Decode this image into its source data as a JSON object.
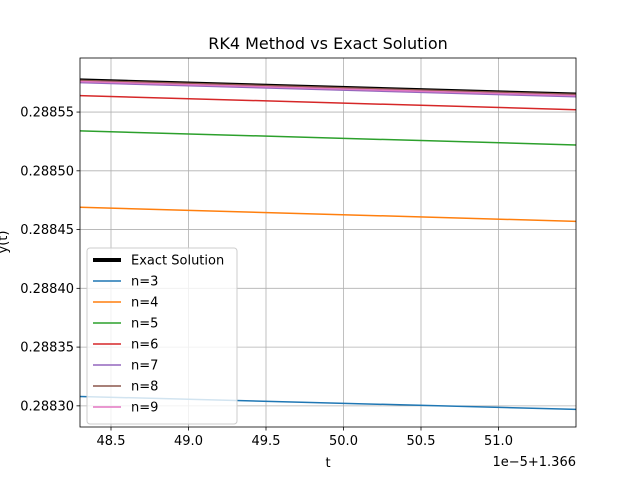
{
  "chart_data": {
    "type": "line",
    "title": "RK4 Method vs Exact Solution",
    "xlabel": "t",
    "ylabel": "y(t)",
    "x_offset_label": "1e−5+1.366",
    "xlim": [
      48.3,
      51.5
    ],
    "ylim": [
      0.288282,
      0.288596
    ],
    "xticks": [
      48.5,
      49.0,
      49.5,
      50.0,
      50.5,
      51.0
    ],
    "xtick_labels": [
      "48.5",
      "49.0",
      "49.5",
      "50.0",
      "50.5",
      "51.0"
    ],
    "yticks": [
      0.2883,
      0.28835,
      0.2884,
      0.28845,
      0.2885,
      0.28855
    ],
    "ytick_labels": [
      "0.28830",
      "0.28835",
      "0.28840",
      "0.28845",
      "0.28850",
      "0.28855"
    ],
    "grid": true,
    "legend_position": "lower-left",
    "x": [
      48.3,
      51.5
    ],
    "series": [
      {
        "name": "Exact Solution",
        "values": [
          0.288578,
          0.288566
        ],
        "color": "#000000",
        "width": 1.5,
        "legend_width": 4
      },
      {
        "name": "n=3",
        "values": [
          0.288308,
          0.288297
        ],
        "color": "#1f77b4",
        "width": 1.5
      },
      {
        "name": "n=4",
        "values": [
          0.288469,
          0.288457
        ],
        "color": "#ff7f0e",
        "width": 1.5
      },
      {
        "name": "n=5",
        "values": [
          0.288534,
          0.288522
        ],
        "color": "#2ca02c",
        "width": 1.5
      },
      {
        "name": "n=6",
        "values": [
          0.288564,
          0.288552
        ],
        "color": "#d62728",
        "width": 1.5
      },
      {
        "name": "n=7",
        "values": [
          0.288575,
          0.288563
        ],
        "color": "#9467bd",
        "width": 1.5
      },
      {
        "name": "n=8",
        "values": [
          0.288577,
          0.288565
        ],
        "color": "#8c564b",
        "width": 1.5
      },
      {
        "name": "n=9",
        "values": [
          0.288576,
          0.288564
        ],
        "color": "#e377c2",
        "width": 1.5
      }
    ]
  }
}
